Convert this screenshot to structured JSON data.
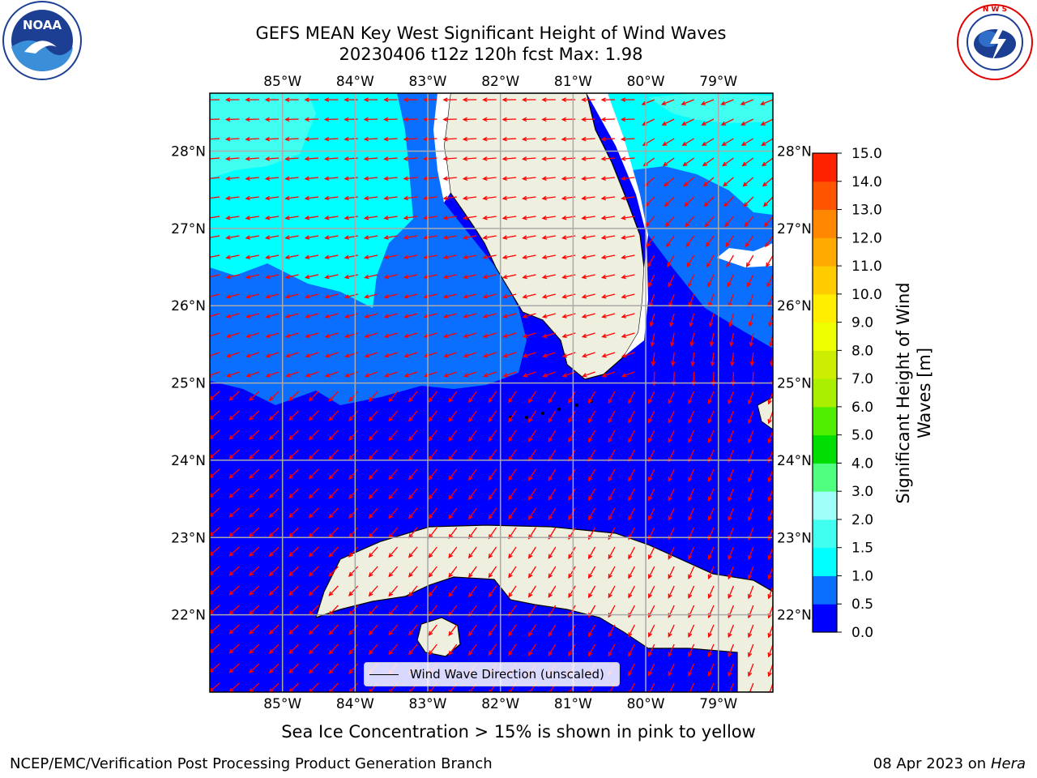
{
  "header": {
    "title_line1": "GEFS MEAN Key West Significant Height of Wind Waves",
    "title_line2": "20230406 t12z 120h fcst   Max: 1.98"
  },
  "logos": {
    "left": "NOAA",
    "left_ring_text": "NATIONAL OCEANIC AND ATMOSPHERIC ADMINISTRATION · U.S. DEPARTMENT OF COMMERCE",
    "right_ring_text": "NATIONAL WEATHER SERVICE"
  },
  "map": {
    "lon_labels": [
      "85°W",
      "84°W",
      "83°W",
      "82°W",
      "81°W",
      "80°W",
      "79°W"
    ],
    "lat_labels": [
      "28°N",
      "27°N",
      "26°N",
      "25°N",
      "24°N",
      "23°N",
      "22°N"
    ],
    "legend_label": "Wind Wave Direction (unscaled)",
    "arrow_color": "#ff0000",
    "land_color": "#efefdf"
  },
  "colorbar": {
    "title_line1": "Significant Height of Wind",
    "title_line2": "Waves [m]",
    "ticks": [
      "0.0",
      "0.5",
      "1.0",
      "1.5",
      "2.0",
      "3.0",
      "4.0",
      "5.0",
      "6.0",
      "7.0",
      "8.0",
      "9.0",
      "10.0",
      "11.0",
      "12.0",
      "13.0",
      "14.0",
      "15.0"
    ],
    "colors": [
      "#0000ff",
      "#0a6fff",
      "#00ffff",
      "#40fff0",
      "#a0fff8",
      "#50ff80",
      "#00dd00",
      "#50ee00",
      "#aaee00",
      "#ccee00",
      "#eeff00",
      "#ffee00",
      "#ffcc00",
      "#ffaa00",
      "#ff8800",
      "#ff5500",
      "#ff2200"
    ]
  },
  "notes": {
    "sea_ice": "Sea Ice Concentration > 15% is shown in pink to yellow"
  },
  "footer": {
    "left": "NCEP/EMC/Verification Post Processing Product Generation Branch",
    "right_date": "08 Apr 2023 on",
    "right_host": "Hera"
  }
}
